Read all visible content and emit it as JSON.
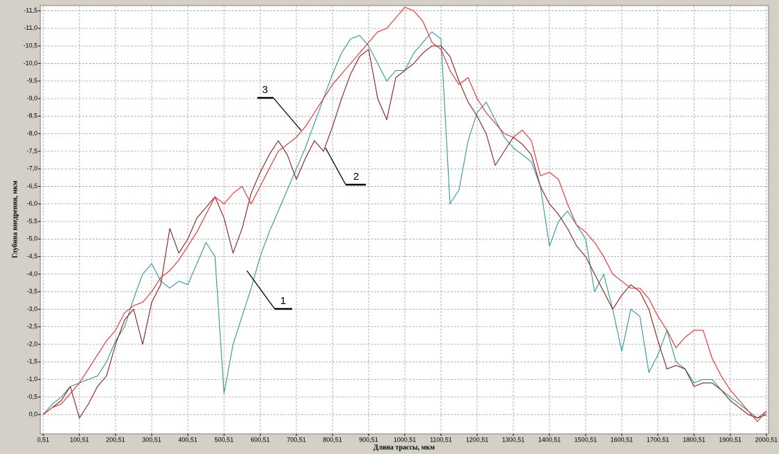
{
  "chart_data": {
    "type": "line",
    "xlabel": "Длина трассы, мкм",
    "ylabel": "Глубина внедрения, мкм",
    "x": [
      0.51,
      25.51,
      50.51,
      75.51,
      100.51,
      125.51,
      150.51,
      175.51,
      200.51,
      225.51,
      250.51,
      275.51,
      300.51,
      325.51,
      350.51,
      375.51,
      400.51,
      425.51,
      450.51,
      475.51,
      500.51,
      525.51,
      550.51,
      575.51,
      600.51,
      625.51,
      650.51,
      675.51,
      700.51,
      725.51,
      750.51,
      775.51,
      800.51,
      825.51,
      850.51,
      875.51,
      900.51,
      925.51,
      950.51,
      975.51,
      1000.51,
      1025.51,
      1050.51,
      1075.51,
      1100.51,
      1125.51,
      1150.51,
      1175.51,
      1200.51,
      1225.51,
      1250.51,
      1275.51,
      1300.51,
      1325.51,
      1350.51,
      1375.51,
      1400.51,
      1425.51,
      1450.51,
      1475.51,
      1500.51,
      1525.51,
      1550.51,
      1575.51,
      1600.51,
      1625.51,
      1650.51,
      1675.51,
      1700.51,
      1725.51,
      1750.51,
      1775.51,
      1800.51,
      1825.51,
      1850.51,
      1875.51,
      1900.51,
      1925.51,
      1950.51,
      1975.51,
      2000.51
    ],
    "series": [
      {
        "name": "1",
        "color": "#2a9a96",
        "values": [
          0,
          -0.3,
          -0.5,
          -0.8,
          -0.9,
          -1.0,
          -1.1,
          -1.5,
          -2.1,
          -2.5,
          -3.3,
          -4.0,
          -4.3,
          -3.8,
          -3.6,
          -3.8,
          -3.7,
          -4.3,
          -4.9,
          -4.5,
          -0.6,
          -2.0,
          -2.8,
          -3.6,
          -4.5,
          -5.2,
          -5.8,
          -6.4,
          -7.0,
          -7.6,
          -8.3,
          -9.0,
          -9.7,
          -10.3,
          -10.7,
          -10.8,
          -10.5,
          -10.0,
          -9.5,
          -9.8,
          -9.8,
          -10.3,
          -10.6,
          -10.9,
          -10.7,
          -6.0,
          -6.4,
          -7.8,
          -8.6,
          -8.9,
          -8.4,
          -7.9,
          -7.6,
          -7.4,
          -7.2,
          -6.5,
          -4.8,
          -5.5,
          -5.8,
          -5.4,
          -5.0,
          -3.5,
          -4.0,
          -3.0,
          -1.8,
          -3.0,
          -2.8,
          -1.2,
          -1.7,
          -2.4,
          -1.5,
          -1.3,
          -0.9,
          -1.0,
          -1.0,
          -0.7,
          -0.5,
          -0.3,
          -0.1,
          0.1,
          -0.1
        ]
      },
      {
        "name": "2",
        "color": "#8b1c1c",
        "values": [
          0,
          -0.2,
          -0.4,
          -0.8,
          0.1,
          -0.3,
          -0.8,
          -1.1,
          -2.0,
          -2.7,
          -3.0,
          -2.0,
          -3.2,
          -3.7,
          -5.3,
          -4.6,
          -5.0,
          -5.6,
          -5.9,
          -6.2,
          -5.6,
          -4.6,
          -5.3,
          -6.3,
          -6.9,
          -7.4,
          -7.8,
          -7.4,
          -6.7,
          -7.3,
          -7.8,
          -7.5,
          -8.2,
          -9.0,
          -9.7,
          -10.2,
          -10.4,
          -9.0,
          -8.4,
          -9.6,
          -9.8,
          -10.0,
          -10.3,
          -10.5,
          -10.5,
          -10.2,
          -9.5,
          -8.9,
          -8.5,
          -8.0,
          -7.1,
          -7.5,
          -7.9,
          -7.7,
          -7.4,
          -6.5,
          -6.0,
          -5.7,
          -5.3,
          -4.8,
          -4.5,
          -4.0,
          -3.5,
          -3.0,
          -3.4,
          -3.7,
          -3.5,
          -3.0,
          -2.1,
          -1.3,
          -1.4,
          -1.3,
          -0.8,
          -0.9,
          -0.9,
          -0.7,
          -0.4,
          -0.2,
          0.0,
          0.1,
          0.0
        ]
      },
      {
        "name": "3",
        "color": "#f02828",
        "values": [
          0,
          -0.2,
          -0.3,
          -0.6,
          -0.9,
          -1.3,
          -1.7,
          -2.1,
          -2.4,
          -2.9,
          -3.1,
          -3.2,
          -3.5,
          -3.9,
          -4.1,
          -4.4,
          -4.8,
          -5.2,
          -5.7,
          -6.2,
          -6.0,
          -6.3,
          -6.5,
          -6.0,
          -6.5,
          -7.0,
          -7.5,
          -7.7,
          -7.9,
          -8.2,
          -8.6,
          -9.0,
          -9.4,
          -9.7,
          -10.0,
          -10.3,
          -10.6,
          -10.9,
          -11.0,
          -11.3,
          -11.6,
          -11.5,
          -11.2,
          -10.6,
          -10.4,
          -9.8,
          -9.4,
          -9.6,
          -9.0,
          -8.6,
          -8.3,
          -8.0,
          -7.9,
          -8.1,
          -7.8,
          -6.8,
          -6.9,
          -6.7,
          -6.0,
          -5.4,
          -5.2,
          -4.9,
          -4.5,
          -4.0,
          -3.8,
          -3.6,
          -3.6,
          -3.3,
          -2.8,
          -2.4,
          -1.9,
          -2.2,
          -2.4,
          -2.4,
          -1.6,
          -1.1,
          -0.7,
          -0.4,
          -0.1,
          0.2,
          -0.1
        ]
      }
    ],
    "xlim": [
      -7.5,
      2006.5
    ],
    "ylim": [
      0.55,
      -11.65
    ],
    "xticks": [
      {
        "value": 0.51,
        "label": "0,51"
      },
      {
        "value": 100.51,
        "label": "100,51"
      },
      {
        "value": 200.51,
        "label": "200,51"
      },
      {
        "value": 300.51,
        "label": "300,51"
      },
      {
        "value": 400.51,
        "label": "400,51"
      },
      {
        "value": 500.51,
        "label": "500,51"
      },
      {
        "value": 600.51,
        "label": "600,51"
      },
      {
        "value": 700.51,
        "label": "700,51"
      },
      {
        "value": 800.51,
        "label": "800,51"
      },
      {
        "value": 900.51,
        "label": "900,51"
      },
      {
        "value": 1000.51,
        "label": "1000,51"
      },
      {
        "value": 1100.51,
        "label": "1100,51"
      },
      {
        "value": 1200.51,
        "label": "1200,51"
      },
      {
        "value": 1300.51,
        "label": "1300,51"
      },
      {
        "value": 1400.51,
        "label": "1400,51"
      },
      {
        "value": 1500.51,
        "label": "1500,51"
      },
      {
        "value": 1600.51,
        "label": "1600,51"
      },
      {
        "value": 1700.51,
        "label": "1700,51"
      },
      {
        "value": 1800.51,
        "label": "1800,51"
      },
      {
        "value": 1900.51,
        "label": "1900,51"
      },
      {
        "value": 2000.51,
        "label": "2000,51"
      }
    ],
    "yticks": [
      {
        "value": -11.5,
        "label": "-11,5"
      },
      {
        "value": -11,
        "label": "-11,0"
      },
      {
        "value": -10.5,
        "label": "-10,5"
      },
      {
        "value": -10,
        "label": "-10,0"
      },
      {
        "value": -9.5,
        "label": "-9,5"
      },
      {
        "value": -9,
        "label": "-9,0"
      },
      {
        "value": -8.5,
        "label": "-8,5"
      },
      {
        "value": -8,
        "label": "-8,0"
      },
      {
        "value": -7.5,
        "label": "-7,5"
      },
      {
        "value": -7,
        "label": "-7,0"
      },
      {
        "value": -6.5,
        "label": "-6,5"
      },
      {
        "value": -6,
        "label": "-6,0"
      },
      {
        "value": -5.5,
        "label": "-5,5"
      },
      {
        "value": -5,
        "label": "-5,0"
      },
      {
        "value": -4.5,
        "label": "-4,5"
      },
      {
        "value": -4,
        "label": "-4,0"
      },
      {
        "value": -3.5,
        "label": "-3,5"
      },
      {
        "value": -3,
        "label": "-3,0"
      },
      {
        "value": -2.5,
        "label": "-2,5"
      },
      {
        "value": -2,
        "label": "-2,0"
      },
      {
        "value": -1.5,
        "label": "-1,5"
      },
      {
        "value": -1,
        "label": "-1,0"
      },
      {
        "value": -0.5,
        "label": "-0,5"
      },
      {
        "value": 0,
        "label": "0,0"
      }
    ],
    "grid": true
  }
}
